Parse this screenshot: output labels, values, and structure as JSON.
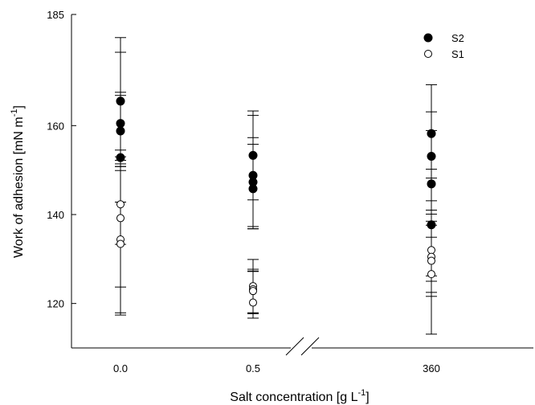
{
  "chart_data": {
    "type": "scatter",
    "title": "",
    "xlabel": "Salt concentration [g L",
    "xlabel_sup": "-1",
    "xlabel_end": "]",
    "ylabel": "Work of adhesion [mN m",
    "ylabel_sup": "-1",
    "ylabel_end": "]",
    "categories": [
      "0.0",
      "0.5",
      "360"
    ],
    "axis_break": "between 0.5 and 360",
    "ylim": [
      110,
      185
    ],
    "yticks": [
      "120",
      "140",
      "160",
      "185"
    ],
    "legend_position": "top-right",
    "series": [
      {
        "name": "S2",
        "marker": "filled-circle",
        "color": "#000000",
        "points": [
          {
            "x": "0.0",
            "y": 165.5,
            "err_low": 11.0,
            "err_high": 11.0
          },
          {
            "x": "0.0",
            "y": 160.5,
            "err_low": 7.5,
            "err_high": 7.0
          },
          {
            "x": "0.0",
            "y": 158.8,
            "err_low": 8.0,
            "err_high": 8.0
          },
          {
            "x": "0.0",
            "y": 152.8,
            "err_low": 10.0,
            "err_high": 27.0
          },
          {
            "x": "0.5",
            "y": 153.3,
            "err_low": 10.0,
            "err_high": 10.0
          },
          {
            "x": "0.5",
            "y": 148.8,
            "err_low": 12.0,
            "err_high": 13.5
          },
          {
            "x": "0.5",
            "y": 147.3,
            "err_low": 10.0,
            "err_high": 10.0
          },
          {
            "x": "0.5",
            "y": 145.8,
            "err_low": 9.0,
            "err_high": 10.0
          },
          {
            "x": "360",
            "y": 158.2,
            "err_low": 10.0,
            "err_high": 11.0
          },
          {
            "x": "360",
            "y": 153.1,
            "err_low": 10.0,
            "err_high": 10.0
          },
          {
            "x": "360",
            "y": 146.9,
            "err_low": 12.0,
            "err_high": 12.0
          },
          {
            "x": "360",
            "y": 137.7,
            "err_low": 11.5,
            "err_high": 12.5
          }
        ]
      },
      {
        "name": "S1",
        "marker": "open-circle",
        "color": "#000000",
        "points": [
          {
            "x": "0.0",
            "y": 142.3,
            "err_low": 9.0,
            "err_high": 8.5
          },
          {
            "x": "0.0",
            "y": 139.2,
            "err_low": 15.5,
            "err_high": 13.0
          },
          {
            "x": "0.0",
            "y": 134.4,
            "err_low": 17.0,
            "err_high": 17.0
          },
          {
            "x": "0.0",
            "y": 133.4,
            "err_low": 15.5,
            "err_high": 16.5
          },
          {
            "x": "0.5",
            "y": 123.9,
            "err_low": 6.0,
            "err_high": 6.0
          },
          {
            "x": "0.5",
            "y": 123.2,
            "err_low": 5.5,
            "err_high": 4.5
          },
          {
            "x": "0.5",
            "y": 122.8,
            "err_low": 5.0,
            "err_high": 4.5
          },
          {
            "x": "0.5",
            "y": 120.2,
            "err_low": 3.5,
            "err_high": 7.0
          },
          {
            "x": "360",
            "y": 132.0,
            "err_low": 7.0,
            "err_high": 9.0
          },
          {
            "x": "360",
            "y": 130.5,
            "err_low": 8.0,
            "err_high": 8.0
          },
          {
            "x": "360",
            "y": 129.6,
            "err_low": 8.0,
            "err_high": 8.0
          },
          {
            "x": "360",
            "y": 126.6,
            "err_low": 13.5,
            "err_high": 13.5
          }
        ]
      }
    ]
  }
}
